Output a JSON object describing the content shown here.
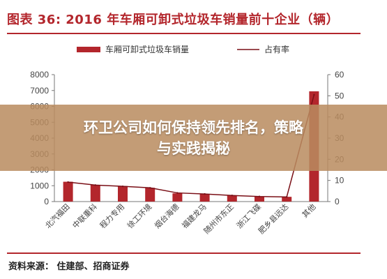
{
  "header": {
    "title": "图表 36:  2016 年车厢可卸式垃圾车销量前十企业（辆）"
  },
  "overlay": {
    "line1": "环卫公司如何保持领先排名，策略",
    "line2": "与实践揭秘"
  },
  "footer": {
    "source": "资料来源：  住建部、招商证券"
  },
  "colors": {
    "bar": "#b3262c",
    "line": "#7a0f16",
    "accent": "#b3262c"
  },
  "chart_data": {
    "type": "bar",
    "title": "",
    "categories": [
      "北汽福田",
      "中联重科",
      "程力专用",
      "徐工环境",
      "烟台海德",
      "福建龙马",
      "随州市东正",
      "浙江飞碟",
      "肥乡县远达",
      "其他"
    ],
    "series": [
      {
        "name": "车厢可卸式垃圾车销量",
        "type": "bar",
        "axis": "left",
        "values": [
          1250,
          1050,
          980,
          870,
          520,
          480,
          380,
          330,
          300,
          6950
        ]
      },
      {
        "name": "占有率",
        "type": "line",
        "axis": "right",
        "values": [
          9.2,
          7.8,
          7.2,
          6.5,
          4.1,
          3.6,
          2.9,
          2.4,
          2.2,
          50.5
        ]
      }
    ],
    "ylim_left": [
      0,
      8000
    ],
    "yticks_left": [
      "0",
      "1000",
      "2000",
      "3000",
      "4000",
      "5000",
      "6000",
      "7000",
      "8000"
    ],
    "ylim_right": [
      0,
      60
    ],
    "yticks_right": [
      "0",
      "10",
      "20",
      "30",
      "40",
      "50",
      "60"
    ],
    "legend_position": "top",
    "grid": false
  }
}
